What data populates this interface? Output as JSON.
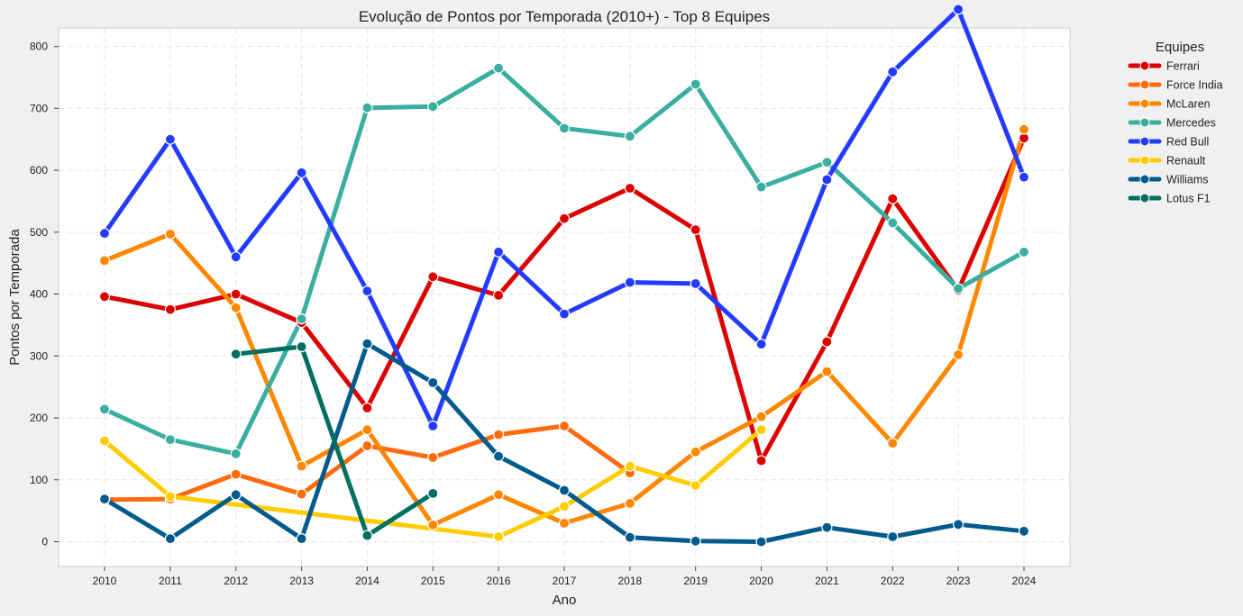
{
  "chart_data": {
    "type": "line",
    "title": "Evolução de Pontos por Temporada (2010+) - Top 8 Equipes",
    "xlabel": "Ano",
    "ylabel": "Pontos por Temporada",
    "categories": [
      "2010",
      "2011",
      "2012",
      "2013",
      "2014",
      "2015",
      "2016",
      "2017",
      "2018",
      "2019",
      "2020",
      "2021",
      "2022",
      "2023",
      "2024"
    ],
    "yticks": [
      "0",
      "100",
      "200",
      "300",
      "400",
      "500",
      "600",
      "700",
      "800"
    ],
    "ylim": [
      -40,
      830
    ],
    "grid": true,
    "legend": {
      "title": "Equipes",
      "position": "outside-right"
    },
    "series": [
      {
        "name": "Ferrari",
        "color": "#dc0000",
        "points": [
          [
            2010,
            396
          ],
          [
            2011,
            375
          ],
          [
            2012,
            400
          ],
          [
            2013,
            354
          ],
          [
            2014,
            216
          ],
          [
            2015,
            428
          ],
          [
            2016,
            398
          ],
          [
            2017,
            522
          ],
          [
            2018,
            571
          ],
          [
            2019,
            504
          ],
          [
            2020,
            131
          ],
          [
            2021,
            323
          ],
          [
            2022,
            554
          ],
          [
            2023,
            406
          ],
          [
            2024,
            652
          ]
        ]
      },
      {
        "name": "Force India",
        "color": "#ff6a0d",
        "points": [
          [
            2010,
            68
          ],
          [
            2011,
            69
          ],
          [
            2012,
            109
          ],
          [
            2013,
            77
          ],
          [
            2014,
            155
          ],
          [
            2015,
            136
          ],
          [
            2016,
            173
          ],
          [
            2017,
            187
          ],
          [
            2018,
            111
          ]
        ]
      },
      {
        "name": "McLaren",
        "color": "#ff8700",
        "points": [
          [
            2010,
            454
          ],
          [
            2011,
            497
          ],
          [
            2012,
            378
          ],
          [
            2013,
            122
          ],
          [
            2014,
            181
          ],
          [
            2015,
            27
          ],
          [
            2016,
            76
          ],
          [
            2017,
            30
          ],
          [
            2018,
            62
          ],
          [
            2019,
            145
          ],
          [
            2020,
            202
          ],
          [
            2021,
            275
          ],
          [
            2022,
            159
          ],
          [
            2023,
            302
          ],
          [
            2024,
            666
          ]
        ]
      },
      {
        "name": "Mercedes",
        "color": "#3aaf9f",
        "points": [
          [
            2010,
            214
          ],
          [
            2011,
            165
          ],
          [
            2012,
            142
          ],
          [
            2013,
            360
          ],
          [
            2014,
            701
          ],
          [
            2015,
            703
          ],
          [
            2016,
            765
          ],
          [
            2017,
            668
          ],
          [
            2018,
            655
          ],
          [
            2019,
            739
          ],
          [
            2020,
            573
          ],
          [
            2021,
            613
          ],
          [
            2022,
            515
          ],
          [
            2023,
            409
          ],
          [
            2024,
            468
          ]
        ]
      },
      {
        "name": "Red Bull",
        "color": "#223bff",
        "points": [
          [
            2010,
            498
          ],
          [
            2011,
            650
          ],
          [
            2012,
            460
          ],
          [
            2013,
            596
          ],
          [
            2014,
            405
          ],
          [
            2015,
            187
          ],
          [
            2016,
            468
          ],
          [
            2017,
            368
          ],
          [
            2018,
            419
          ],
          [
            2019,
            417
          ],
          [
            2020,
            319
          ],
          [
            2021,
            585
          ],
          [
            2022,
            759
          ],
          [
            2023,
            860
          ],
          [
            2024,
            589
          ]
        ]
      },
      {
        "name": "Renault",
        "color": "#ffcc00",
        "points": [
          [
            2010,
            163
          ],
          [
            2011,
            73
          ],
          [
            2016,
            8
          ],
          [
            2017,
            57
          ],
          [
            2018,
            122
          ],
          [
            2019,
            91
          ],
          [
            2020,
            181
          ]
        ]
      },
      {
        "name": "Williams",
        "color": "#005a8c",
        "points": [
          [
            2010,
            69
          ],
          [
            2011,
            5
          ],
          [
            2012,
            76
          ],
          [
            2013,
            5
          ],
          [
            2014,
            320
          ],
          [
            2015,
            257
          ],
          [
            2016,
            138
          ],
          [
            2017,
            83
          ],
          [
            2018,
            7
          ],
          [
            2019,
            1
          ],
          [
            2020,
            0
          ],
          [
            2021,
            23
          ],
          [
            2022,
            8
          ],
          [
            2023,
            28
          ],
          [
            2024,
            17
          ]
        ]
      },
      {
        "name": "Lotus F1",
        "color": "#006f62",
        "points": [
          [
            2012,
            303
          ],
          [
            2013,
            315
          ],
          [
            2014,
            10
          ],
          [
            2015,
            78
          ]
        ]
      }
    ]
  }
}
